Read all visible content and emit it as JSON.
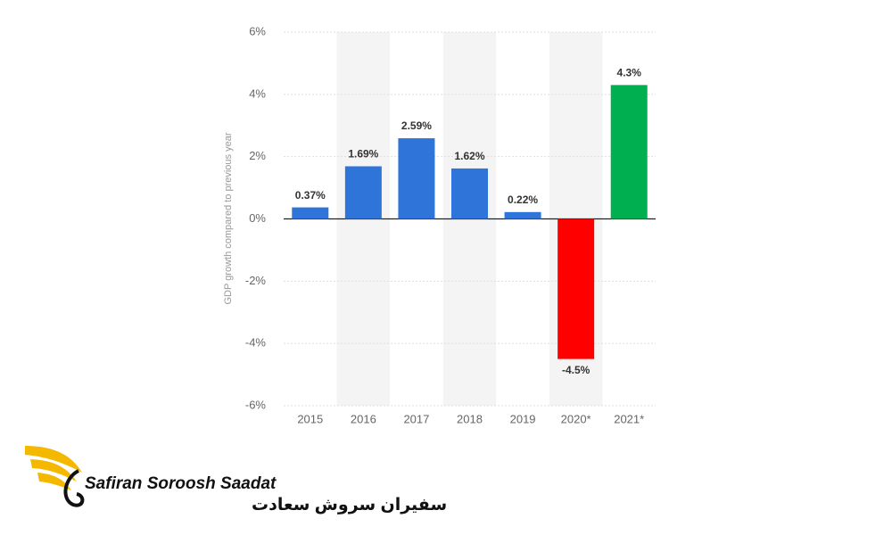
{
  "chart_data": {
    "type": "bar",
    "y_label": "GDP growth compared to previous year",
    "categories": [
      "2015",
      "2016",
      "2017",
      "2018",
      "2019",
      "2020*",
      "2021*"
    ],
    "values": [
      0.37,
      1.69,
      2.59,
      1.62,
      0.22,
      -4.5,
      4.3
    ],
    "value_labels": [
      "0.37%",
      "1.69%",
      "2.59%",
      "1.62%",
      "0.22%",
      "-4.5%",
      "4.3%"
    ],
    "colors": [
      "#2f74d8",
      "#2f74d8",
      "#2f74d8",
      "#2f74d8",
      "#2f74d8",
      "#ff0000",
      "#00b050"
    ],
    "ylim": [
      -6,
      6
    ],
    "yticks": [
      {
        "value": -6,
        "label": "-6%"
      },
      {
        "value": -4,
        "label": "-4%"
      },
      {
        "value": -2,
        "label": "-2%"
      },
      {
        "value": 0,
        "label": "0%"
      },
      {
        "value": 2,
        "label": "2%"
      },
      {
        "value": 4,
        "label": "4%"
      },
      {
        "value": 6,
        "label": "6%"
      }
    ],
    "grid": true
  },
  "logo": {
    "name": "Safiran Soroosh Saadat",
    "name_fa": "سفیران سروش سعادت"
  }
}
